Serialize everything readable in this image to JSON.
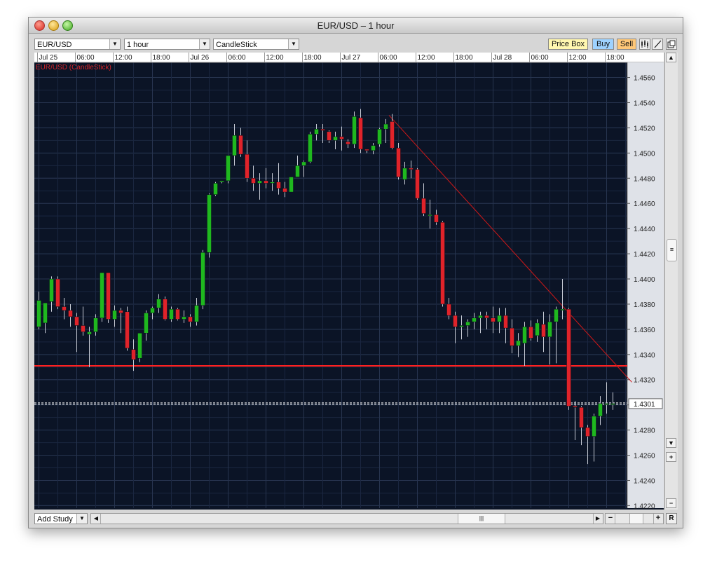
{
  "window": {
    "title": "EUR/USD – 1 hour"
  },
  "toolbar": {
    "symbol": "EUR/USD",
    "timeframe": "1 hour",
    "chart_type": "CandleStick",
    "price_box": "Price Box",
    "buy": "Buy",
    "sell": "Sell"
  },
  "bottom": {
    "add_study": "Add Study",
    "zoom_reset": "R"
  },
  "colors": {
    "up": "#1fb81f",
    "down": "#e0232a",
    "background": "#0b1426",
    "grid": "#27344f",
    "hline": "#ff2020",
    "trendline": "#d01818",
    "current": "#ffffff"
  },
  "chart_data": {
    "type": "candlestick",
    "title": "EUR/USD (CandleStick)",
    "timeframe": "1 hour",
    "ylim": [
      1.4218,
      1.4572
    ],
    "y_ticks": [
      "1.4560",
      "1.4540",
      "1.4520",
      "1.4500",
      "1.4480",
      "1.4460",
      "1.4440",
      "1.4420",
      "1.4400",
      "1.4380",
      "1.4360",
      "1.4340",
      "1.4320",
      "1.4300",
      "1.4280",
      "1.4260",
      "1.4240",
      "1.4220"
    ],
    "x_ticks": [
      {
        "label": "Jul 25",
        "i": 0
      },
      {
        "label": "06:00",
        "i": 6
      },
      {
        "label": "12:00",
        "i": 12
      },
      {
        "label": "18:00",
        "i": 18
      },
      {
        "label": "Jul 26",
        "i": 24
      },
      {
        "label": "06:00",
        "i": 30
      },
      {
        "label": "12:00",
        "i": 36
      },
      {
        "label": "18:00",
        "i": 42
      },
      {
        "label": "Jul 27",
        "i": 48
      },
      {
        "label": "06:00",
        "i": 54
      },
      {
        "label": "12:00",
        "i": 60
      },
      {
        "label": "18:00",
        "i": 66
      },
      {
        "label": "Jul 28",
        "i": 72
      },
      {
        "label": "06:00",
        "i": 78
      },
      {
        "label": "12:00",
        "i": 84
      },
      {
        "label": "18:00",
        "i": 90
      }
    ],
    "last_price": "1.4301",
    "horizontal_line": 1.4331,
    "trendline": {
      "from_index": 55.5,
      "from_price": 1.453,
      "to_index": 94,
      "to_price": 1.4318
    },
    "ohlc": [
      [
        1.4362,
        1.439,
        1.436,
        1.4383
      ],
      [
        1.4365,
        1.438,
        1.4357,
        1.4381
      ],
      [
        1.4382,
        1.4402,
        1.4374,
        1.44
      ],
      [
        1.44,
        1.4402,
        1.4376,
        1.4378
      ],
      [
        1.4378,
        1.4385,
        1.4368,
        1.4375
      ],
      [
        1.4375,
        1.438,
        1.4362,
        1.437
      ],
      [
        1.437,
        1.4373,
        1.4342,
        1.4363
      ],
      [
        1.4363,
        1.4378,
        1.4355,
        1.4358
      ],
      [
        1.4356,
        1.4362,
        1.433,
        1.4358
      ],
      [
        1.4358,
        1.4372,
        1.4355,
        1.4369
      ],
      [
        1.4369,
        1.4405,
        1.4366,
        1.4405
      ],
      [
        1.4405,
        1.4405,
        1.4365,
        1.4368
      ],
      [
        1.4368,
        1.4379,
        1.4362,
        1.4375
      ],
      [
        1.4375,
        1.4377,
        1.4357,
        1.4373
      ],
      [
        1.4374,
        1.4378,
        1.4343,
        1.4345
      ],
      [
        1.4344,
        1.4352,
        1.4327,
        1.4336
      ],
      [
        1.4337,
        1.4357,
        1.4334,
        1.4357
      ],
      [
        1.4357,
        1.4375,
        1.4351,
        1.4373
      ],
      [
        1.4373,
        1.4378,
        1.4368,
        1.4377
      ],
      [
        1.4377,
        1.4388,
        1.4373,
        1.4384
      ],
      [
        1.4384,
        1.4386,
        1.4367,
        1.4368
      ],
      [
        1.4368,
        1.4378,
        1.4366,
        1.4376
      ],
      [
        1.4376,
        1.4377,
        1.4367,
        1.4368
      ],
      [
        1.4368,
        1.4375,
        1.4365,
        1.437
      ],
      [
        1.437,
        1.4372,
        1.4362,
        1.4366
      ],
      [
        1.4366,
        1.4385,
        1.4363,
        1.4379
      ],
      [
        1.4379,
        1.4423,
        1.4376,
        1.4421
      ],
      [
        1.4421,
        1.4468,
        1.4417,
        1.4467
      ],
      [
        1.4467,
        1.4477,
        1.4466,
        1.4476
      ],
      [
        1.4477,
        1.4478,
        1.4476,
        1.4478
      ],
      [
        1.4478,
        1.4498,
        1.4476,
        1.4498
      ],
      [
        1.4498,
        1.4523,
        1.449,
        1.4514
      ],
      [
        1.4514,
        1.452,
        1.4497,
        1.4499
      ],
      [
        1.4499,
        1.451,
        1.4477,
        1.448
      ],
      [
        1.448,
        1.449,
        1.447,
        1.4476
      ],
      [
        1.4476,
        1.4484,
        1.4463,
        1.4478
      ],
      [
        1.4478,
        1.4488,
        1.4472,
        1.4476
      ],
      [
        1.4476,
        1.4484,
        1.447,
        1.4477
      ],
      [
        1.4477,
        1.4492,
        1.4467,
        1.4472
      ],
      [
        1.4472,
        1.4477,
        1.4465,
        1.4469
      ],
      [
        1.4469,
        1.4481,
        1.4469,
        1.4481
      ],
      [
        1.4481,
        1.4498,
        1.4481,
        1.449
      ],
      [
        1.449,
        1.4494,
        1.4481,
        1.4493
      ],
      [
        1.4493,
        1.4517,
        1.4492,
        1.4515
      ],
      [
        1.4515,
        1.4523,
        1.451,
        1.4519
      ],
      [
        1.4519,
        1.4523,
        1.4508,
        1.4518
      ],
      [
        1.4517,
        1.4518,
        1.4508,
        1.451
      ],
      [
        1.451,
        1.4517,
        1.4503,
        1.4513
      ],
      [
        1.4513,
        1.4521,
        1.4502,
        1.4511
      ],
      [
        1.4509,
        1.4511,
        1.4504,
        1.4507
      ],
      [
        1.4507,
        1.4533,
        1.4504,
        1.4529
      ],
      [
        1.4528,
        1.4535,
        1.45,
        1.4503
      ],
      [
        1.4503,
        1.4503,
        1.45,
        1.4502
      ],
      [
        1.4502,
        1.4508,
        1.4499,
        1.4506
      ],
      [
        1.4507,
        1.452,
        1.4505,
        1.4519
      ],
      [
        1.4519,
        1.4527,
        1.4508,
        1.4523
      ],
      [
        1.4525,
        1.4531,
        1.4503,
        1.4504
      ],
      [
        1.4504,
        1.4508,
        1.4479,
        1.4481
      ],
      [
        1.4479,
        1.4493,
        1.4475,
        1.4488
      ],
      [
        1.4488,
        1.4494,
        1.448,
        1.4487
      ],
      [
        1.4487,
        1.4488,
        1.4463,
        1.4464
      ],
      [
        1.4464,
        1.4476,
        1.445,
        1.4452
      ],
      [
        1.4451,
        1.4463,
        1.444,
        1.4451
      ],
      [
        1.4451,
        1.4455,
        1.4443,
        1.4445
      ],
      [
        1.4445,
        1.4446,
        1.4378,
        1.438
      ],
      [
        1.438,
        1.4385,
        1.4368,
        1.4371
      ],
      [
        1.4371,
        1.4374,
        1.4349,
        1.4362
      ],
      [
        1.4362,
        1.4371,
        1.4352,
        1.4363
      ],
      [
        1.4363,
        1.4368,
        1.4354,
        1.4366
      ],
      [
        1.4366,
        1.4373,
        1.436,
        1.4369
      ],
      [
        1.4369,
        1.4374,
        1.4357,
        1.4371
      ],
      [
        1.4371,
        1.4374,
        1.436,
        1.4369
      ],
      [
        1.4369,
        1.4378,
        1.4357,
        1.4366
      ],
      [
        1.4366,
        1.4377,
        1.4357,
        1.4371
      ],
      [
        1.4371,
        1.4377,
        1.4349,
        1.4361
      ],
      [
        1.4361,
        1.4368,
        1.4341,
        1.4347
      ],
      [
        1.4347,
        1.4357,
        1.4338,
        1.4351
      ],
      [
        1.4349,
        1.4366,
        1.4331,
        1.4362
      ],
      [
        1.4362,
        1.4367,
        1.4351,
        1.4353
      ],
      [
        1.4355,
        1.4368,
        1.435,
        1.4365
      ],
      [
        1.4364,
        1.4374,
        1.4342,
        1.4354
      ],
      [
        1.4354,
        1.4372,
        1.4332,
        1.4366
      ],
      [
        1.4366,
        1.4378,
        1.4333,
        1.4376
      ],
      [
        1.4376,
        1.44,
        1.4368,
        1.4376
      ],
      [
        1.4376,
        1.4377,
        1.4296,
        1.4299
      ],
      [
        1.4299,
        1.4303,
        1.4272,
        1.4298
      ],
      [
        1.4298,
        1.4299,
        1.4268,
        1.4282
      ],
      [
        1.4282,
        1.4284,
        1.4253,
        1.4275
      ],
      [
        1.4275,
        1.4293,
        1.4255,
        1.4291
      ],
      [
        1.4291,
        1.4307,
        1.4284,
        1.4301
      ],
      [
        1.4301,
        1.4318,
        1.4293,
        1.4301
      ],
      [
        1.4301,
        1.431,
        1.4296,
        1.4301
      ]
    ]
  }
}
